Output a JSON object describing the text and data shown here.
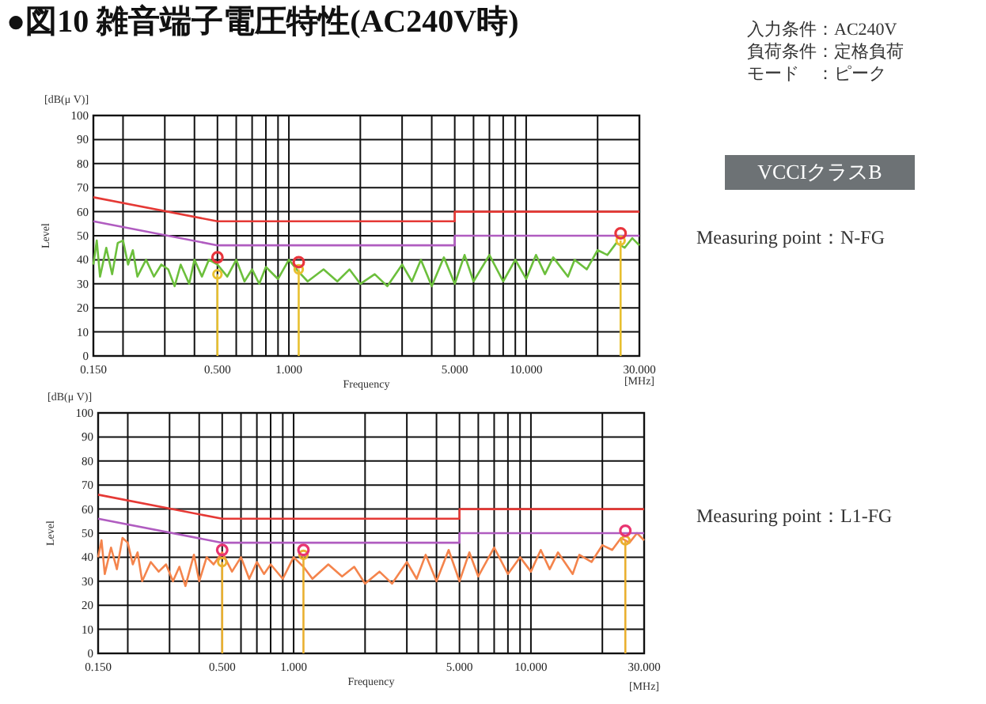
{
  "chart_data": [
    {
      "type": "line",
      "title": "●図10 雑音端子電圧特性(AC240V時)",
      "xlabel": "Frequency",
      "ylabel": "Level",
      "log": "x",
      "grid": true,
      "annotations": [
        "[dB(μ V)]",
        "[MHz]",
        "入力条件：AC240V",
        "負荷条件：定格負荷",
        "モード　：ピーク",
        "VCCIクラスB",
        "Measuring point：N-FG"
      ],
      "xlim": [
        0.15,
        30
      ],
      "ylim": [
        0,
        100
      ],
      "xticks": [
        {
          "value": 0.15,
          "label": "0.150"
        },
        {
          "value": 0.2,
          "label": null
        },
        {
          "value": 0.3,
          "label": null
        },
        {
          "value": 0.4,
          "label": null
        },
        {
          "value": 0.5,
          "label": "0.500"
        },
        {
          "value": 0.6,
          "label": null
        },
        {
          "value": 0.7,
          "label": null
        },
        {
          "value": 0.8,
          "label": null
        },
        {
          "value": 0.9,
          "label": null
        },
        {
          "value": 1,
          "label": "1.000"
        },
        {
          "value": 2,
          "label": null
        },
        {
          "value": 3,
          "label": null
        },
        {
          "value": 4,
          "label": null
        },
        {
          "value": 5,
          "label": "5.000"
        },
        {
          "value": 6,
          "label": null
        },
        {
          "value": 7,
          "label": null
        },
        {
          "value": 8,
          "label": null
        },
        {
          "value": 9,
          "label": null
        },
        {
          "value": 10,
          "label": "10.000"
        },
        {
          "value": 20,
          "label": null
        },
        {
          "value": 30,
          "label": "30.000"
        }
      ],
      "yticks": [
        0,
        10,
        20,
        30,
        40,
        50,
        60,
        70,
        80,
        90,
        100
      ],
      "series": [
        {
          "color": "#6cbf3c",
          "x": [
            0.15,
            0.155,
            0.16,
            0.17,
            0.18,
            0.19,
            0.2,
            0.21,
            0.22,
            0.23,
            0.25,
            0.27,
            0.29,
            0.31,
            0.33,
            0.35,
            0.38,
            0.4,
            0.43,
            0.46,
            0.5,
            0.55,
            0.6,
            0.65,
            0.7,
            0.75,
            0.8,
            0.9,
            1.0,
            1.1,
            1.2,
            1.4,
            1.6,
            1.8,
            2.0,
            2.3,
            2.6,
            3.0,
            3.3,
            3.6,
            4.0,
            4.5,
            5.0,
            5.5,
            6.0,
            7,
            8,
            9,
            10,
            11,
            12,
            13,
            15,
            16,
            18,
            20,
            22,
            24,
            26,
            28,
            30
          ],
          "values": [
            38,
            48,
            33,
            45,
            34,
            47,
            48,
            38,
            44,
            33,
            40,
            33,
            38,
            36,
            29,
            38,
            30,
            40,
            33,
            40,
            38,
            33,
            40,
            31,
            36,
            30,
            37,
            32,
            40,
            35,
            31,
            36,
            31,
            36,
            30,
            34,
            29,
            38,
            31,
            40,
            29,
            41,
            30,
            42,
            31,
            42,
            31,
            40,
            32,
            42,
            34,
            41,
            33,
            40,
            36,
            44,
            42,
            47,
            45,
            49,
            46
          ]
        },
        {
          "type": "line",
          "color": "#e53935",
          "x": [
            0.15,
            0.5,
            5,
            5,
            30
          ],
          "values": [
            66,
            56,
            56,
            60,
            60
          ]
        },
        {
          "type": "line",
          "color": "#b05cc0",
          "x": [
            0.15,
            0.5,
            5,
            5,
            30
          ],
          "values": [
            56,
            46,
            46,
            50,
            50
          ]
        },
        {
          "type": "lollipop",
          "color": "#e8c030",
          "x": [
            0.5,
            1.1,
            25
          ],
          "values": [
            34,
            36,
            48
          ]
        },
        {
          "type": "scatter",
          "marker": "circle",
          "color": "#e8343c",
          "x": [
            0.5,
            1.1,
            25
          ],
          "values": [
            41,
            39,
            51
          ]
        }
      ]
    },
    {
      "type": "line",
      "xlabel": "Frequency",
      "ylabel": "Level",
      "log": "x",
      "grid": true,
      "annotations": [
        "[dB(μ V)]",
        "[MHz]",
        "Measuring point：L1-FG"
      ],
      "xlim": [
        0.15,
        30
      ],
      "ylim": [
        0,
        100
      ],
      "xticks": [
        {
          "value": 0.15,
          "label": "0.150"
        },
        {
          "value": 0.2,
          "label": null
        },
        {
          "value": 0.3,
          "label": null
        },
        {
          "value": 0.4,
          "label": null
        },
        {
          "value": 0.5,
          "label": "0.500"
        },
        {
          "value": 0.6,
          "label": null
        },
        {
          "value": 0.7,
          "label": null
        },
        {
          "value": 0.8,
          "label": null
        },
        {
          "value": 0.9,
          "label": null
        },
        {
          "value": 1,
          "label": "1.000"
        },
        {
          "value": 2,
          "label": null
        },
        {
          "value": 3,
          "label": null
        },
        {
          "value": 4,
          "label": null
        },
        {
          "value": 5,
          "label": "5.000"
        },
        {
          "value": 6,
          "label": null
        },
        {
          "value": 7,
          "label": null
        },
        {
          "value": 8,
          "label": null
        },
        {
          "value": 9,
          "label": null
        },
        {
          "value": 10,
          "label": "10.000"
        },
        {
          "value": 20,
          "label": null
        },
        {
          "value": 30,
          "label": "30.000"
        }
      ],
      "yticks": [
        0,
        10,
        20,
        30,
        40,
        50,
        60,
        70,
        80,
        90,
        100
      ],
      "series": [
        {
          "color": "#f4844c",
          "x": [
            0.15,
            0.155,
            0.16,
            0.17,
            0.18,
            0.19,
            0.2,
            0.21,
            0.22,
            0.23,
            0.25,
            0.27,
            0.29,
            0.31,
            0.33,
            0.35,
            0.38,
            0.4,
            0.43,
            0.46,
            0.5,
            0.55,
            0.6,
            0.65,
            0.7,
            0.75,
            0.8,
            0.9,
            1.0,
            1.1,
            1.2,
            1.4,
            1.6,
            1.8,
            2.0,
            2.3,
            2.6,
            3.0,
            3.3,
            3.6,
            4.0,
            4.5,
            5.0,
            5.5,
            6.0,
            7,
            8,
            9,
            10,
            11,
            12,
            13,
            15,
            16,
            18,
            20,
            22,
            24,
            26,
            28,
            30
          ],
          "values": [
            40,
            47,
            33,
            44,
            35,
            48,
            46,
            37,
            42,
            30,
            38,
            34,
            37,
            30,
            36,
            28,
            41,
            30,
            40,
            37,
            42,
            34,
            40,
            31,
            38,
            33,
            37,
            31,
            40,
            36,
            31,
            37,
            32,
            36,
            29,
            34,
            29,
            38,
            31,
            41,
            30,
            43,
            30,
            42,
            32,
            44,
            33,
            40,
            34,
            43,
            35,
            42,
            33,
            41,
            38,
            45,
            43,
            48,
            46,
            50,
            47
          ]
        },
        {
          "type": "line",
          "color": "#e53935",
          "x": [
            0.15,
            0.5,
            5,
            5,
            30
          ],
          "values": [
            66,
            56,
            56,
            60,
            60
          ]
        },
        {
          "type": "line",
          "color": "#b05cc0",
          "x": [
            0.15,
            0.5,
            5,
            5,
            30
          ],
          "values": [
            56,
            46,
            46,
            50,
            50
          ]
        },
        {
          "type": "lollipop",
          "color": "#eab030",
          "x": [
            0.5,
            1.1,
            25
          ],
          "values": [
            38,
            41,
            47
          ]
        },
        {
          "type": "scatter",
          "marker": "circle",
          "color": "#e83470",
          "x": [
            0.5,
            1.1,
            25
          ],
          "values": [
            43,
            43,
            51
          ]
        }
      ]
    }
  ]
}
